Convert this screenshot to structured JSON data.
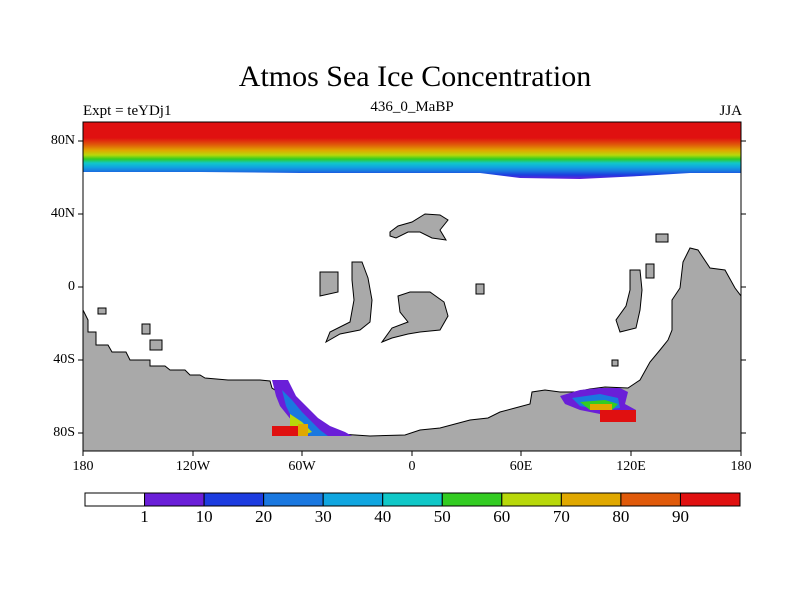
{
  "title": "Atmos Sea Ice Concentration",
  "subtitle": {
    "left": "Expt = teYDj1",
    "center": "436_0_MaBP",
    "right": "JJA"
  },
  "axes": {
    "lat_labels": [
      "80N",
      "40N",
      "0",
      "40S",
      "80S"
    ],
    "lon_labels": [
      "180",
      "120W",
      "60W",
      "0",
      "60E",
      "120E",
      "180"
    ]
  },
  "colorbar": {
    "colors": [
      "#ffffff",
      "#6a1fd8",
      "#1c3ce0",
      "#1a78e0",
      "#10a6e0",
      "#10c8c8",
      "#33cc22",
      "#b8d80a",
      "#e0a800",
      "#e05a0a",
      "#e01010"
    ],
    "labels": [
      "1",
      "10",
      "20",
      "30",
      "40",
      "50",
      "60",
      "70",
      "80",
      "90"
    ]
  },
  "colors": {
    "land": "#a9a9a9",
    "ocean": "#ffffff",
    "outline": "#000000"
  }
}
